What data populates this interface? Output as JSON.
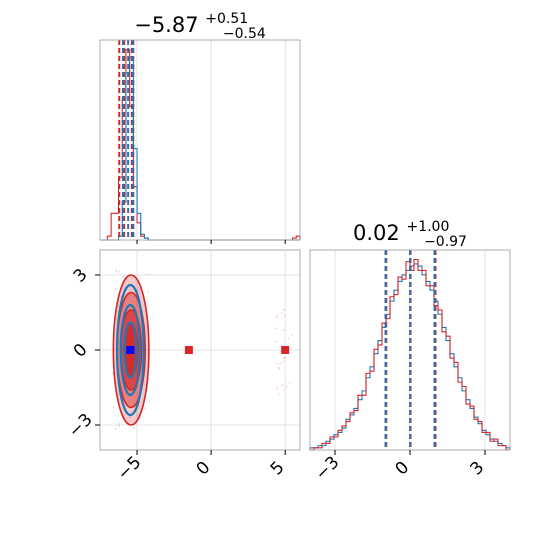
{
  "chart_data": [
    {
      "type": "histogram",
      "panel": "top-left",
      "title_value": "−5.87",
      "title_plus": "+0.51",
      "title_minus": "−0.54",
      "xlim": [
        -7.5,
        6.0
      ],
      "grid": true,
      "bin_edges_start": -7.5,
      "bin_width": 0.25,
      "series": [
        {
          "name": "",
          "color": "#d62728",
          "counts": [
            0,
            0,
            2,
            14,
            14,
            33,
            74,
            100,
            70,
            28,
            9,
            2,
            1,
            0,
            0,
            0,
            0,
            0,
            0,
            0,
            0,
            0,
            0,
            0,
            0,
            0,
            0,
            0,
            0,
            0,
            0,
            0,
            0,
            0,
            0,
            0,
            0,
            0,
            0,
            0,
            0,
            0,
            0,
            0,
            0,
            0,
            0,
            0,
            0,
            0,
            0,
            0,
            1,
            2
          ]
        },
        {
          "name": "",
          "color": "#1f77b4",
          "counts": [
            0,
            0,
            0,
            0,
            0,
            2,
            20,
            88,
            96,
            48,
            14,
            3,
            1,
            0,
            0,
            0,
            0,
            0,
            0,
            0,
            0,
            0,
            0,
            0,
            0,
            0,
            0,
            0,
            0,
            0,
            0,
            0,
            0,
            0,
            0,
            0,
            0,
            0,
            0,
            0,
            0,
            0,
            0,
            0,
            0,
            0,
            0,
            0,
            0,
            0,
            0,
            0,
            0,
            0
          ]
        }
      ],
      "quantile_lines": [
        {
          "color": "#d62728",
          "values": [
            -6.2,
            -5.87,
            -5.35
          ]
        },
        {
          "color": "#1f77b4",
          "values": [
            -5.95,
            -5.6,
            -5.25
          ]
        }
      ]
    },
    {
      "type": "histogram",
      "panel": "bottom-right",
      "title_value": "0.02",
      "title_plus": "+1.00",
      "title_minus": "−0.97",
      "xlim": [
        -4.0,
        4.0
      ],
      "xticks": [
        -3,
        0,
        3
      ],
      "xtick_labels": [
        "−3",
        "0",
        "3"
      ],
      "grid": true,
      "bin_edges_start": -4.0,
      "bin_width": 0.16,
      "series": [
        {
          "name": "",
          "color": "#1f77b4",
          "counts": [
            1,
            1,
            2,
            2,
            4,
            5,
            7,
            8,
            10,
            14,
            16,
            19,
            23,
            27,
            33,
            38,
            44,
            50,
            56,
            62,
            68,
            73,
            77,
            80,
            82,
            84,
            85,
            84,
            80,
            77,
            73,
            68,
            62,
            56,
            50,
            44,
            38,
            33,
            27,
            23,
            19,
            15,
            12,
            9,
            7,
            5,
            4,
            3,
            2,
            1
          ]
        },
        {
          "name": "",
          "color": "#d62728",
          "counts": [
            0,
            1,
            1,
            3,
            3,
            6,
            6,
            9,
            11,
            13,
            17,
            18,
            25,
            25,
            35,
            36,
            46,
            48,
            58,
            60,
            70,
            71,
            79,
            78,
            86,
            82,
            87,
            82,
            82,
            75,
            75,
            66,
            64,
            54,
            52,
            42,
            40,
            31,
            29,
            21,
            20,
            14,
            13,
            8,
            8,
            4,
            5,
            2,
            2,
            0
          ]
        }
      ],
      "quantile_lines": [
        {
          "color": "#d62728",
          "values": [
            -0.95,
            0.02,
            1.02
          ]
        },
        {
          "color": "#1f77b4",
          "values": [
            -0.98,
            0.0,
            0.98
          ]
        }
      ]
    },
    {
      "type": "contour",
      "panel": "bottom-left",
      "xlim": [
        -7.5,
        6.0
      ],
      "ylim": [
        -4.0,
        4.0
      ],
      "xticks": [
        -5,
        0,
        5
      ],
      "xtick_labels": [
        "−5",
        "0",
        "5"
      ],
      "yticks": [
        -3,
        0,
        3
      ],
      "ytick_labels": [
        "−3",
        "0",
        "3"
      ],
      "grid": true,
      "series": [
        {
          "name": "",
          "color": "#d62728",
          "center": [
            -5.4,
            0.0
          ],
          "levels": [
            {
              "rx": 1.2,
              "ry": 3.0,
              "opacity": 0.25
            },
            {
              "rx": 0.95,
              "ry": 2.3,
              "opacity": 0.45
            },
            {
              "rx": 0.7,
              "ry": 1.6,
              "opacity": 0.65
            },
            {
              "rx": 0.45,
              "ry": 1.0,
              "opacity": 0.85
            }
          ],
          "square_markers": [
            [
              -5.4,
              0.0
            ],
            [
              -1.5,
              0.0
            ],
            [
              5.0,
              0.0
            ]
          ]
        },
        {
          "name": "",
          "color": "#1f77b4",
          "center": [
            -5.45,
            0.0
          ],
          "levels": [
            {
              "rx": 0.9,
              "ry": 2.6
            },
            {
              "rx": 0.65,
              "ry": 1.8
            },
            {
              "rx": 0.4,
              "ry": 1.1
            }
          ],
          "square_markers": [
            [
              -5.45,
              0.0
            ]
          ]
        }
      ]
    }
  ]
}
